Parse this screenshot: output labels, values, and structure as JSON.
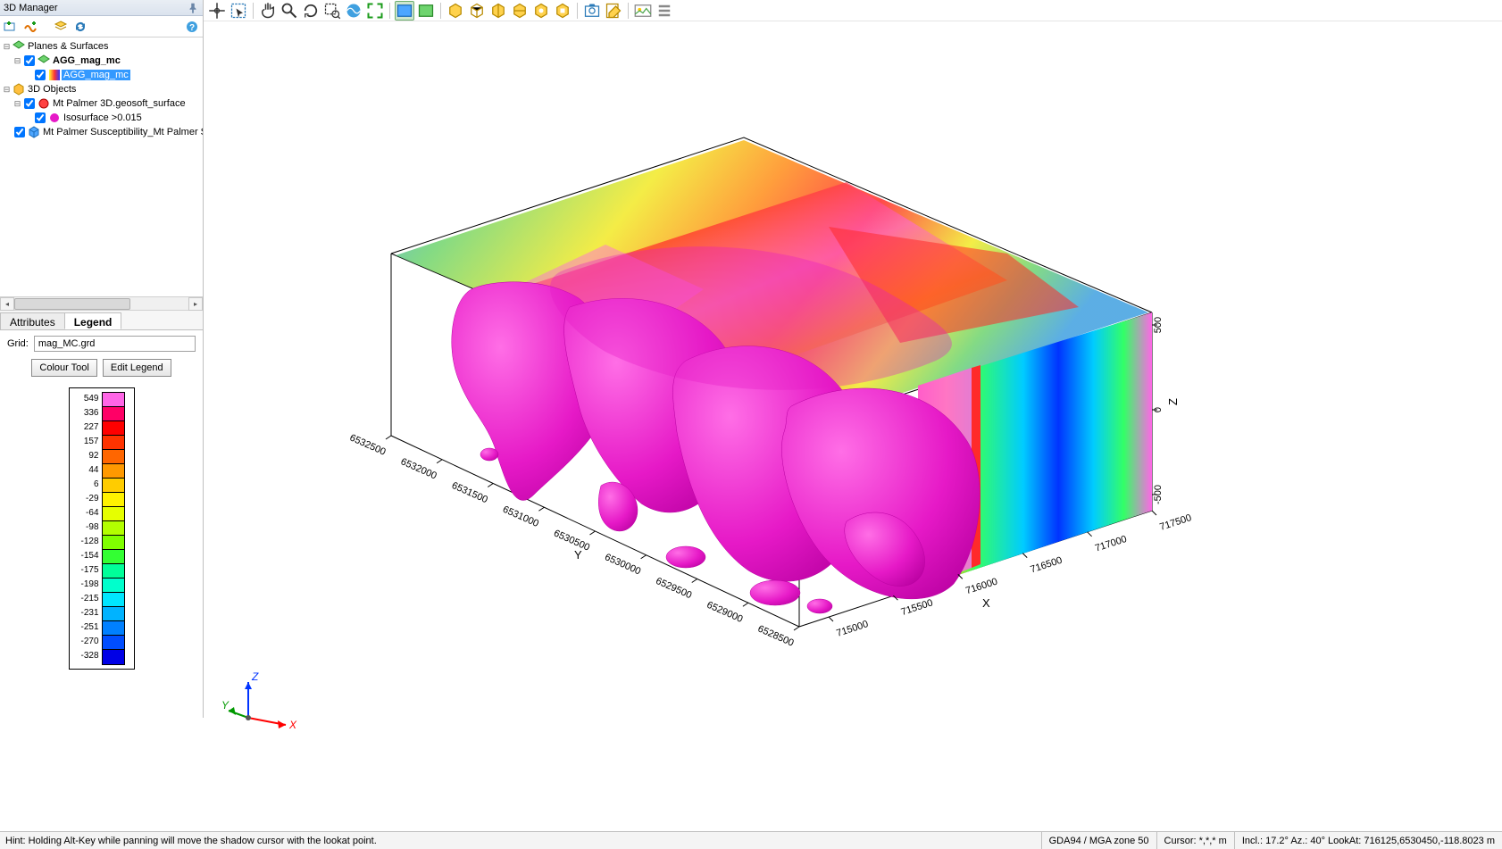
{
  "panel": {
    "title": "3D Manager",
    "tree": {
      "root1": "Planes & Surfaces",
      "r1_c1": "AGG_mag_mc",
      "r1_c1_c1": "AGG_mag_mc",
      "root2": "3D Objects",
      "r2_c1": "Mt Palmer 3D.geosoft_surface",
      "r2_c1_c1": "Isosurface >0.015",
      "r2_c2": "Mt Palmer Susceptibility_Mt Palmer Sus"
    },
    "tabs": {
      "attributes": "Attributes",
      "legend": "Legend",
      "active": "legend"
    },
    "grid_label": "Grid:",
    "grid_value": "mag_MC.grd",
    "btn_colour": "Colour Tool",
    "btn_edit": "Edit Legend"
  },
  "legend": {
    "values": [
      "549",
      "336",
      "227",
      "157",
      "92",
      "44",
      "6",
      "-29",
      "-64",
      "-98",
      "-128",
      "-154",
      "-175",
      "-198",
      "-215",
      "-231",
      "-251",
      "-270",
      "-328"
    ],
    "colors": [
      "#ff66e6",
      "#ff0066",
      "#ff0000",
      "#ff3300",
      "#ff6600",
      "#ff9900",
      "#ffcc00",
      "#fff200",
      "#e6ff00",
      "#b3ff00",
      "#80ff00",
      "#33ff33",
      "#00ff99",
      "#00ffcc",
      "#00e6ff",
      "#00b3ff",
      "#0080ff",
      "#004dff",
      "#0000e6"
    ]
  },
  "axes": {
    "y_label": "Y",
    "y_ticks": [
      "6532500",
      "6532000",
      "6531500",
      "6531000",
      "6530500",
      "6530000",
      "6529500",
      "6529000",
      "6528500"
    ],
    "x_label": "X",
    "x_ticks": [
      "715000",
      "715500",
      "716000",
      "716500",
      "717000",
      "717500"
    ],
    "z_label": "Z",
    "z_ticks": [
      "500",
      "0",
      "-500"
    ],
    "triad": {
      "x": "X",
      "y": "Y",
      "z": "Z"
    }
  },
  "viewport": {
    "box_stroke": "#000000",
    "iso_color": "#e619c7",
    "iso_shadow": "#b800a0",
    "top_gradient": [
      "#3fa0e0",
      "#6ed46e",
      "#f2e926",
      "#ff8c1a",
      "#ff2a2a",
      "#6ed46e",
      "#3fa0e0"
    ],
    "side_gradient": [
      "#ff66e6",
      "#ff2a2a",
      "#ffcc00",
      "#33ff66",
      "#00ccff",
      "#0033ff",
      "#33ff66",
      "#ffcc00"
    ]
  },
  "status": {
    "hint": "Hint: Holding Alt-Key while panning will move the shadow cursor with the lookat point.",
    "crs": "GDA94 / MGA zone 50",
    "cursor": "Cursor: *,*,* m",
    "view": "Incl.: 17.2° Az.: 40° LookAt: 716125,6530450,-118.8023 m"
  }
}
